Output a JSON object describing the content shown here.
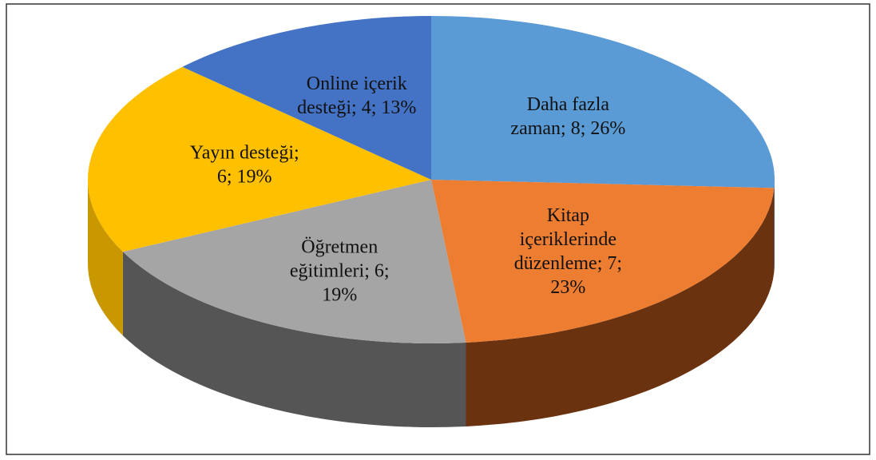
{
  "chart_data": {
    "type": "pie3d",
    "values": [
      8,
      7,
      6,
      6,
      4
    ],
    "value_labels": [
      [
        "Daha fazla",
        "zaman; 8; 26%"
      ],
      [
        "Kitap",
        "içeriklerinde",
        "düzenleme; 7;",
        "23%"
      ],
      [
        "Öğretmen",
        "eğitimleri; 6;",
        "19%"
      ],
      [
        "Yayın desteği;",
        "6; 19%"
      ],
      [
        "Online içerik",
        "desteği; 4; 13%"
      ]
    ],
    "colors": [
      "#5b9bd5",
      "#ed7d31",
      "#a5a5a5",
      "#ffc000",
      "#4472c4"
    ],
    "side_colors": [
      "#3a6f9f",
      "#6b3210",
      "#555555",
      "#c99700",
      "#2d4f8c"
    ]
  }
}
